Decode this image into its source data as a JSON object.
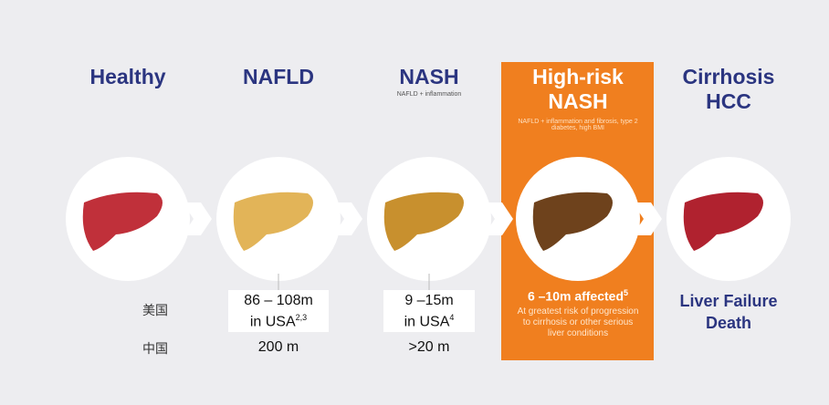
{
  "stages": [
    {
      "title": "Healthy"
    },
    {
      "title": "NAFLD",
      "usa": {
        "line1": "86 – 108m",
        "line2": "in USA",
        "ref": "2,3"
      },
      "china": "200 m"
    },
    {
      "title": "NASH",
      "subtitle": "NAFLD + inflammation",
      "usa": {
        "line1": "9 –15m",
        "line2": "in USA",
        "ref": "4"
      },
      "china": ">20 m"
    },
    {
      "title": "High-risk NASH",
      "subtitle": "NAFLD + inflammation and fibrosis, type 2 diabetes, high BMI",
      "usa": {
        "line1": "6 –10m affected",
        "ref": "5"
      },
      "note": "At greatest risk of progression to cirrhosis or other serious liver conditions"
    },
    {
      "title": "Cirrhosis HCC",
      "outcome": "Liver Failure Death"
    }
  ],
  "row_labels": {
    "usa": "美国",
    "china": "中国"
  }
}
